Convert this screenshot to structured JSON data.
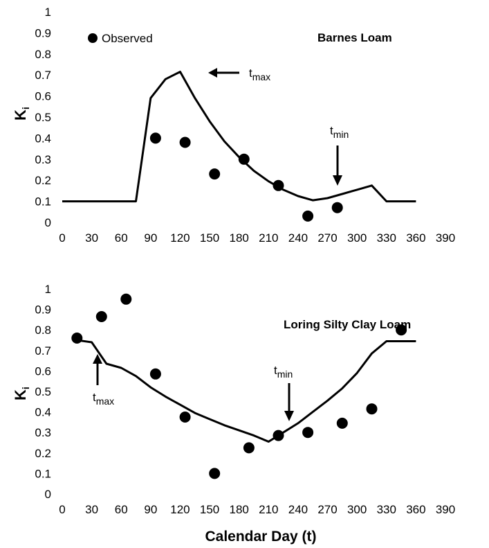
{
  "chart_data": [
    {
      "type": "line",
      "title": "Barnes Loam",
      "xlabel": "",
      "ylabel_main": "K",
      "ylabel_sub": "i",
      "xlim": [
        0,
        390
      ],
      "ylim": [
        0,
        1
      ],
      "xticks": [
        0,
        30,
        60,
        90,
        120,
        150,
        180,
        210,
        240,
        270,
        300,
        330,
        360,
        390
      ],
      "yticks": [
        0,
        0.1,
        0.2,
        0.3,
        0.4,
        0.5,
        0.6,
        0.7,
        0.8,
        0.9,
        1
      ],
      "ytick_labels": [
        "0",
        "0.1",
        "0.2",
        "0.3",
        "0.4",
        "0.5",
        "0.6",
        "0.7",
        "0.8",
        "0.9",
        "1"
      ],
      "legend": {
        "label": "Observed",
        "position": "top-left"
      },
      "series": [
        {
          "kind": "line",
          "x": [
            0,
            75,
            90,
            105,
            120,
            135,
            150,
            165,
            180,
            195,
            210,
            225,
            240,
            255,
            270,
            285,
            300,
            315,
            330,
            345,
            360
          ],
          "y": [
            0.1,
            0.1,
            0.59,
            0.68,
            0.715,
            0.59,
            0.48,
            0.385,
            0.31,
            0.245,
            0.195,
            0.155,
            0.125,
            0.105,
            0.115,
            0.135,
            0.155,
            0.175,
            0.1,
            0.1,
            0.1
          ]
        },
        {
          "name": "Observed",
          "kind": "scatter",
          "x": [
            95,
            125,
            155,
            185,
            220,
            250,
            280
          ],
          "y": [
            0.4,
            0.38,
            0.23,
            0.3,
            0.175,
            0.03,
            0.07
          ]
        }
      ],
      "annotations": [
        {
          "main": "t",
          "sub": "max",
          "x": 120,
          "y": 0.71,
          "arrow": "left"
        },
        {
          "main": "t",
          "sub": "min",
          "x": 263,
          "y": 0.11,
          "arrow": "down"
        }
      ]
    },
    {
      "type": "line",
      "title": "Loring Silty Clay Loam",
      "xlabel": "Calendar Day (t)",
      "ylabel_main": "K",
      "ylabel_sub": "i",
      "xlim": [
        0,
        390
      ],
      "ylim": [
        0,
        1
      ],
      "xticks": [
        0,
        30,
        60,
        90,
        120,
        150,
        180,
        210,
        240,
        270,
        300,
        330,
        360,
        390
      ],
      "yticks": [
        0,
        0.1,
        0.2,
        0.3,
        0.4,
        0.5,
        0.6,
        0.7,
        0.8,
        0.9,
        1
      ],
      "ytick_labels": [
        "0",
        "0.1",
        "0.2",
        "0.3",
        "0.4",
        "0.5",
        "0.6",
        "0.7",
        "0.8",
        "0.9",
        "1"
      ],
      "series": [
        {
          "kind": "line",
          "x": [
            15,
            30,
            45,
            60,
            75,
            90,
            105,
            120,
            135,
            150,
            165,
            180,
            195,
            210,
            225,
            240,
            255,
            270,
            285,
            300,
            315,
            330,
            345,
            360
          ],
          "y": [
            0.75,
            0.74,
            0.635,
            0.615,
            0.575,
            0.52,
            0.475,
            0.435,
            0.395,
            0.365,
            0.335,
            0.31,
            0.285,
            0.255,
            0.3,
            0.345,
            0.4,
            0.455,
            0.515,
            0.59,
            0.685,
            0.745,
            0.745,
            0.745
          ]
        },
        {
          "name": "Observed",
          "kind": "scatter",
          "x": [
            15,
            40,
            65,
            95,
            125,
            155,
            190,
            220,
            250,
            285,
            315,
            345
          ],
          "y": [
            0.76,
            0.865,
            0.95,
            0.585,
            0.375,
            0.1,
            0.225,
            0.285,
            0.3,
            0.345,
            0.415,
            0.8
          ]
        }
      ],
      "annotations": [
        {
          "main": "t",
          "sub": "max",
          "x": 33,
          "y": 0.72,
          "arrow": "up"
        },
        {
          "main": "t",
          "sub": "min",
          "x": 213,
          "y": 0.27,
          "arrow": "down"
        }
      ]
    }
  ]
}
